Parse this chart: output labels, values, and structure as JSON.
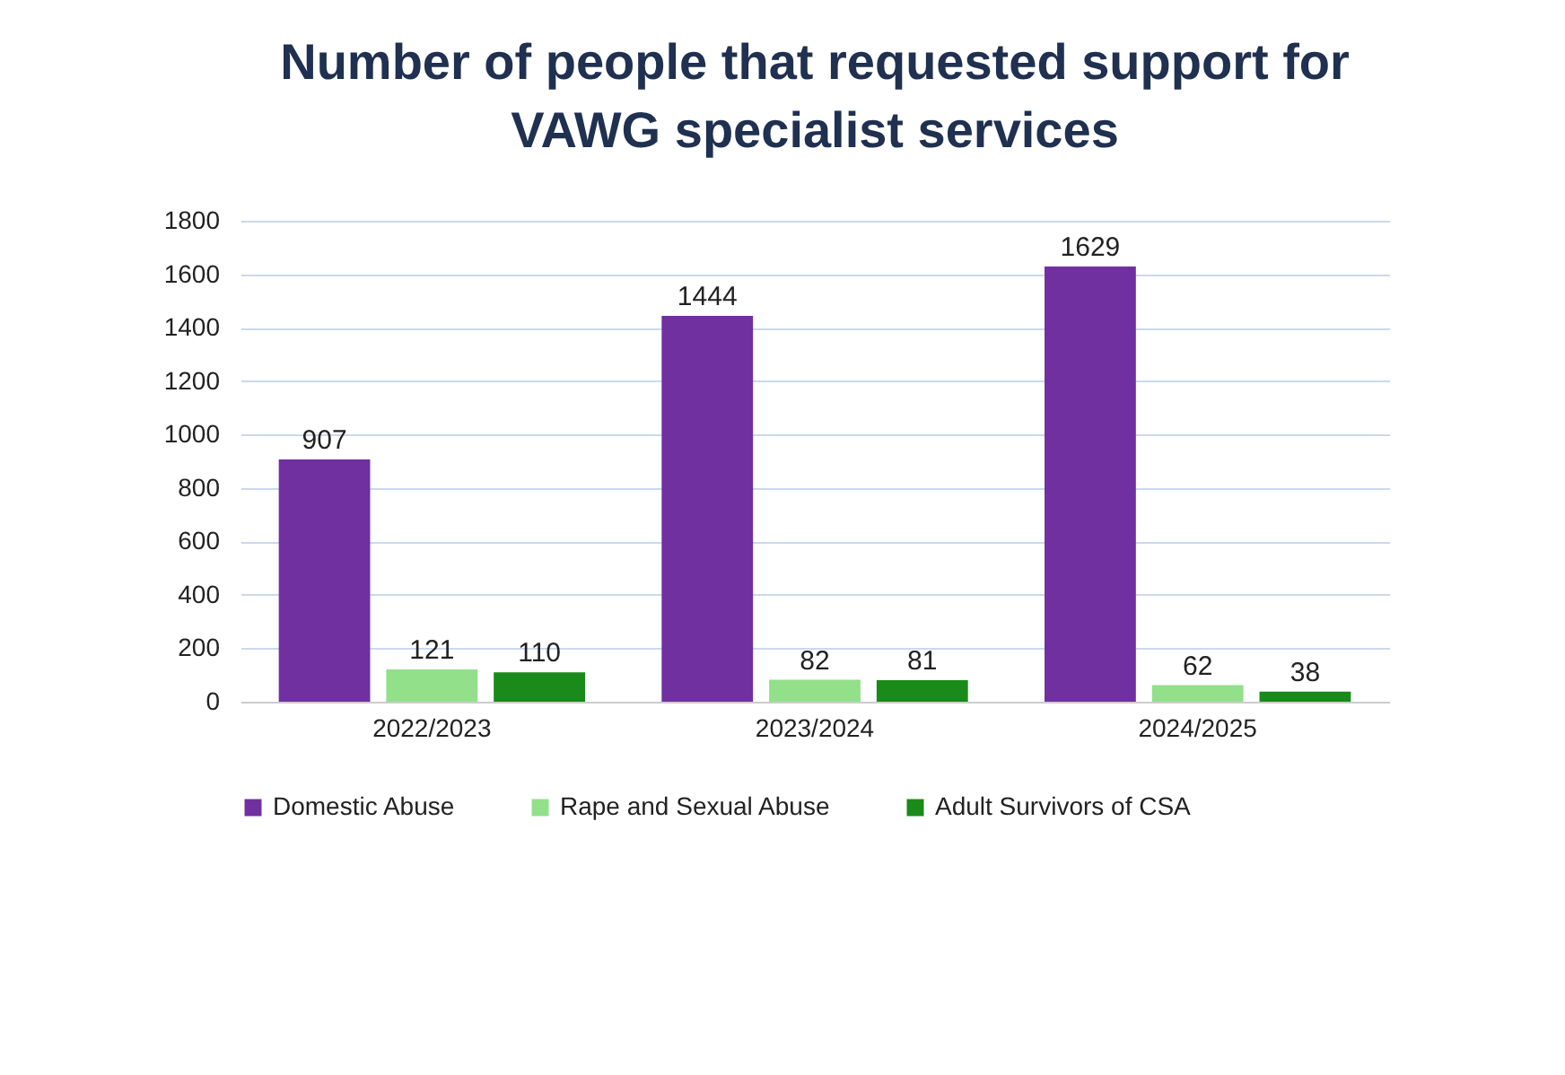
{
  "chart_data": {
    "type": "bar",
    "title": "Number of people that requested support for VAWG specialist services",
    "categories": [
      "2022/2023",
      "2023/2024",
      "2024/2025"
    ],
    "series": [
      {
        "name": "Domestic Abuse",
        "color": "#7030a0",
        "values": [
          907,
          1444,
          1629
        ]
      },
      {
        "name": "Rape and Sexual Abuse",
        "color": "#92e08a",
        "values": [
          121,
          82,
          62
        ]
      },
      {
        "name": "Adult Survivors of CSA",
        "color": "#1a8a1a",
        "values": [
          110,
          81,
          38
        ]
      }
    ],
    "ylim": [
      0,
      1800
    ],
    "yticks": [
      0,
      200,
      400,
      600,
      800,
      1000,
      1200,
      1400,
      1600,
      1800
    ],
    "grid": "y",
    "legend": "bottom",
    "data_labels": true
  }
}
